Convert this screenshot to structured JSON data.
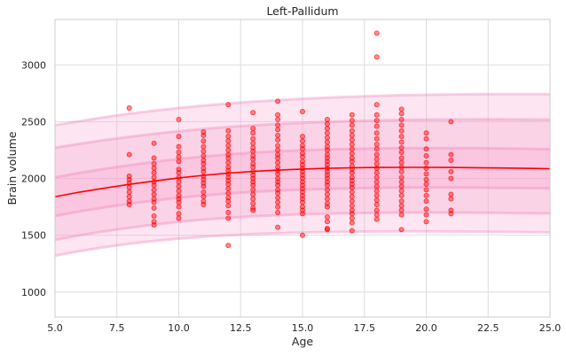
{
  "chart_data": {
    "type": "scatter",
    "title": "Left-Pallidum",
    "xlabel": "Age",
    "ylabel": "Brain volume",
    "xlim": [
      5,
      25
    ],
    "ylim": [
      780,
      3400
    ],
    "xticks": [
      5.0,
      7.5,
      10.0,
      12.5,
      15.0,
      17.5,
      20.0,
      22.5,
      25.0
    ],
    "xtick_labels": [
      "5.0",
      "7.5",
      "10.0",
      "12.5",
      "15.0",
      "17.5",
      "20.0",
      "22.5",
      "25.0"
    ],
    "yticks": [
      1000,
      1500,
      2000,
      2500,
      3000
    ],
    "ytick_labels": [
      "1000",
      "1500",
      "2000",
      "2500",
      "3000"
    ],
    "grid": true,
    "colors": {
      "points": "#ff0000",
      "median_line": "#ff0000",
      "band": "#f7a8cf",
      "band_edge": "#ee7fb7"
    },
    "median_line": {
      "x": [
        5,
        6,
        7,
        8,
        9,
        10,
        11,
        12,
        13,
        14,
        15,
        16,
        17,
        18,
        19,
        20,
        21,
        22,
        23,
        24,
        25
      ],
      "y": [
        1840,
        1880,
        1915,
        1948,
        1978,
        2005,
        2028,
        2047,
        2062,
        2074,
        2083,
        2090,
        2094,
        2097,
        2098,
        2098,
        2097,
        2095,
        2092,
        2089,
        2085
      ]
    },
    "centile_bands": [
      {
        "lower": [
          1320,
          1360,
          1395,
          1425,
          1450,
          1470,
          1487,
          1500,
          1510,
          1518,
          1524,
          1528,
          1531,
          1533,
          1534,
          1534,
          1533,
          1532,
          1530,
          1528,
          1525
        ],
        "upper": [
          2470,
          2505,
          2540,
          2570,
          2597,
          2621,
          2642,
          2660,
          2676,
          2690,
          2702,
          2712,
          2720,
          2727,
          2733,
          2737,
          2740,
          2742,
          2743,
          2743,
          2742
        ]
      },
      {
        "lower": [
          1460,
          1500,
          1535,
          1566,
          1594,
          1618,
          1638,
          1654,
          1667,
          1677,
          1685,
          1691,
          1695,
          1698,
          1700,
          1700,
          1700,
          1699,
          1697,
          1695,
          1692
        ],
        "upper": [
          2270,
          2305,
          2338,
          2367,
          2393,
          2416,
          2436,
          2453,
          2468,
          2480,
          2490,
          2498,
          2505,
          2511,
          2515,
          2518,
          2520,
          2521,
          2521,
          2520,
          2518
        ]
      },
      {
        "lower": [
          1670,
          1710,
          1745,
          1777,
          1805,
          1830,
          1851,
          1868,
          1882,
          1893,
          1902,
          1909,
          1914,
          1917,
          1919,
          1920,
          1920,
          1919,
          1917,
          1915,
          1912
        ],
        "upper": [
          2010,
          2050,
          2085,
          2117,
          2146,
          2172,
          2194,
          2212,
          2227,
          2239,
          2249,
          2256,
          2261,
          2265,
          2267,
          2268,
          2268,
          2267,
          2265,
          2262,
          2258
        ]
      }
    ],
    "points": [
      [
        8,
        2620
      ],
      [
        8,
        2210
      ],
      [
        8,
        2020
      ],
      [
        8,
        1990
      ],
      [
        8,
        1960
      ],
      [
        8,
        1920
      ],
      [
        8,
        1880
      ],
      [
        8,
        1840
      ],
      [
        8,
        1800
      ],
      [
        8,
        1770
      ],
      [
        9,
        2310
      ],
      [
        9,
        2180
      ],
      [
        9,
        2130
      ],
      [
        9,
        2090
      ],
      [
        9,
        2050
      ],
      [
        9,
        2010
      ],
      [
        9,
        1970
      ],
      [
        9,
        1940
      ],
      [
        9,
        1900
      ],
      [
        9,
        1860
      ],
      [
        9,
        1820
      ],
      [
        9,
        1790
      ],
      [
        9,
        1740
      ],
      [
        9,
        1670
      ],
      [
        9,
        1620
      ],
      [
        9,
        1590
      ],
      [
        10,
        2520
      ],
      [
        10,
        2370
      ],
      [
        10,
        2280
      ],
      [
        10,
        2230
      ],
      [
        10,
        2190
      ],
      [
        10,
        2150
      ],
      [
        10,
        2080
      ],
      [
        10,
        2050
      ],
      [
        10,
        2010
      ],
      [
        10,
        1970
      ],
      [
        10,
        1930
      ],
      [
        10,
        1890
      ],
      [
        10,
        1850
      ],
      [
        10,
        1820
      ],
      [
        10,
        1790
      ],
      [
        10,
        1750
      ],
      [
        10,
        1690
      ],
      [
        10,
        1650
      ],
      [
        11,
        2410
      ],
      [
        11,
        2380
      ],
      [
        11,
        2330
      ],
      [
        11,
        2280
      ],
      [
        11,
        2240
      ],
      [
        11,
        2200
      ],
      [
        11,
        2160
      ],
      [
        11,
        2130
      ],
      [
        11,
        2090
      ],
      [
        11,
        2060
      ],
      [
        11,
        2020
      ],
      [
        11,
        1990
      ],
      [
        11,
        1960
      ],
      [
        11,
        1930
      ],
      [
        11,
        1880
      ],
      [
        11,
        1840
      ],
      [
        11,
        1800
      ],
      [
        11,
        1770
      ],
      [
        12,
        2650
      ],
      [
        12,
        2420
      ],
      [
        12,
        2370
      ],
      [
        12,
        2330
      ],
      [
        12,
        2290
      ],
      [
        12,
        2250
      ],
      [
        12,
        2210
      ],
      [
        12,
        2180
      ],
      [
        12,
        2140
      ],
      [
        12,
        2100
      ],
      [
        12,
        2070
      ],
      [
        12,
        2040
      ],
      [
        12,
        2010
      ],
      [
        12,
        1980
      ],
      [
        12,
        1950
      ],
      [
        12,
        1910
      ],
      [
        12,
        1870
      ],
      [
        12,
        1830
      ],
      [
        12,
        1800
      ],
      [
        12,
        1760
      ],
      [
        12,
        1700
      ],
      [
        12,
        1650
      ],
      [
        12,
        1410
      ],
      [
        13,
        2580
      ],
      [
        13,
        2440
      ],
      [
        13,
        2400
      ],
      [
        13,
        2350
      ],
      [
        13,
        2310
      ],
      [
        13,
        2270
      ],
      [
        13,
        2240
      ],
      [
        13,
        2200
      ],
      [
        13,
        2170
      ],
      [
        13,
        2130
      ],
      [
        13,
        2100
      ],
      [
        13,
        2060
      ],
      [
        13,
        2030
      ],
      [
        13,
        2000
      ],
      [
        13,
        1970
      ],
      [
        13,
        1940
      ],
      [
        13,
        1900
      ],
      [
        13,
        1860
      ],
      [
        13,
        1820
      ],
      [
        13,
        1780
      ],
      [
        13,
        1740
      ],
      [
        13,
        1720
      ],
      [
        14,
        2680
      ],
      [
        14,
        2560
      ],
      [
        14,
        2520
      ],
      [
        14,
        2470
      ],
      [
        14,
        2430
      ],
      [
        14,
        2380
      ],
      [
        14,
        2340
      ],
      [
        14,
        2290
      ],
      [
        14,
        2250
      ],
      [
        14,
        2210
      ],
      [
        14,
        2180
      ],
      [
        14,
        2140
      ],
      [
        14,
        2100
      ],
      [
        14,
        2070
      ],
      [
        14,
        2040
      ],
      [
        14,
        2000
      ],
      [
        14,
        1970
      ],
      [
        14,
        1940
      ],
      [
        14,
        1900
      ],
      [
        14,
        1870
      ],
      [
        14,
        1830
      ],
      [
        14,
        1790
      ],
      [
        14,
        1750
      ],
      [
        14,
        1700
      ],
      [
        14,
        1570
      ],
      [
        15,
        2590
      ],
      [
        15,
        2370
      ],
      [
        15,
        2330
      ],
      [
        15,
        2290
      ],
      [
        15,
        2260
      ],
      [
        15,
        2220
      ],
      [
        15,
        2190
      ],
      [
        15,
        2150
      ],
      [
        15,
        2120
      ],
      [
        15,
        2090
      ],
      [
        15,
        2060
      ],
      [
        15,
        2030
      ],
      [
        15,
        2000
      ],
      [
        15,
        1970
      ],
      [
        15,
        1940
      ],
      [
        15,
        1910
      ],
      [
        15,
        1880
      ],
      [
        15,
        1850
      ],
      [
        15,
        1820
      ],
      [
        15,
        1790
      ],
      [
        15,
        1750
      ],
      [
        15,
        1720
      ],
      [
        15,
        1690
      ],
      [
        15,
        1500
      ],
      [
        16,
        2520
      ],
      [
        16,
        2480
      ],
      [
        16,
        2440
      ],
      [
        16,
        2400
      ],
      [
        16,
        2360
      ],
      [
        16,
        2320
      ],
      [
        16,
        2280
      ],
      [
        16,
        2250
      ],
      [
        16,
        2210
      ],
      [
        16,
        2180
      ],
      [
        16,
        2150
      ],
      [
        16,
        2120
      ],
      [
        16,
        2090
      ],
      [
        16,
        2060
      ],
      [
        16,
        2030
      ],
      [
        16,
        2000
      ],
      [
        16,
        1970
      ],
      [
        16,
        1940
      ],
      [
        16,
        1900
      ],
      [
        16,
        1860
      ],
      [
        16,
        1820
      ],
      [
        16,
        1780
      ],
      [
        16,
        1750
      ],
      [
        16,
        1660
      ],
      [
        16,
        1620
      ],
      [
        16,
        1560
      ],
      [
        16,
        1550
      ],
      [
        17,
        2560
      ],
      [
        17,
        2510
      ],
      [
        17,
        2470
      ],
      [
        17,
        2420
      ],
      [
        17,
        2380
      ],
      [
        17,
        2340
      ],
      [
        17,
        2300
      ],
      [
        17,
        2260
      ],
      [
        17,
        2220
      ],
      [
        17,
        2180
      ],
      [
        17,
        2150
      ],
      [
        17,
        2110
      ],
      [
        17,
        2080
      ],
      [
        17,
        2050
      ],
      [
        17,
        2010
      ],
      [
        17,
        1980
      ],
      [
        17,
        1950
      ],
      [
        17,
        1920
      ],
      [
        17,
        1880
      ],
      [
        17,
        1840
      ],
      [
        17,
        1800
      ],
      [
        17,
        1760
      ],
      [
        17,
        1720
      ],
      [
        17,
        1690
      ],
      [
        17,
        1650
      ],
      [
        17,
        1610
      ],
      [
        17,
        1540
      ],
      [
        18,
        3280
      ],
      [
        18,
        3070
      ],
      [
        18,
        2650
      ],
      [
        18,
        2560
      ],
      [
        18,
        2510
      ],
      [
        18,
        2460
      ],
      [
        18,
        2400
      ],
      [
        18,
        2350
      ],
      [
        18,
        2300
      ],
      [
        18,
        2260
      ],
      [
        18,
        2210
      ],
      [
        18,
        2170
      ],
      [
        18,
        2130
      ],
      [
        18,
        2090
      ],
      [
        18,
        2050
      ],
      [
        18,
        2010
      ],
      [
        18,
        1970
      ],
      [
        18,
        1930
      ],
      [
        18,
        1890
      ],
      [
        18,
        1850
      ],
      [
        18,
        1810
      ],
      [
        18,
        1770
      ],
      [
        18,
        1720
      ],
      [
        18,
        1680
      ],
      [
        18,
        1640
      ],
      [
        19,
        2610
      ],
      [
        19,
        2570
      ],
      [
        19,
        2520
      ],
      [
        19,
        2470
      ],
      [
        19,
        2420
      ],
      [
        19,
        2370
      ],
      [
        19,
        2320
      ],
      [
        19,
        2270
      ],
      [
        19,
        2230
      ],
      [
        19,
        2180
      ],
      [
        19,
        2140
      ],
      [
        19,
        2100
      ],
      [
        19,
        2060
      ],
      [
        19,
        2010
      ],
      [
        19,
        1970
      ],
      [
        19,
        1930
      ],
      [
        19,
        1890
      ],
      [
        19,
        1850
      ],
      [
        19,
        1800
      ],
      [
        19,
        1760
      ],
      [
        19,
        1720
      ],
      [
        19,
        1680
      ],
      [
        19,
        1550
      ],
      [
        20,
        2400
      ],
      [
        20,
        2350
      ],
      [
        20,
        2260
      ],
      [
        20,
        2200
      ],
      [
        20,
        2140
      ],
      [
        20,
        2090
      ],
      [
        20,
        2040
      ],
      [
        20,
        1990
      ],
      [
        20,
        1950
      ],
      [
        20,
        1900
      ],
      [
        20,
        1850
      ],
      [
        20,
        1800
      ],
      [
        20,
        1730
      ],
      [
        20,
        1680
      ],
      [
        20,
        1620
      ],
      [
        21,
        2500
      ],
      [
        21,
        2210
      ],
      [
        21,
        2160
      ],
      [
        21,
        2060
      ],
      [
        21,
        2000
      ],
      [
        21,
        1860
      ],
      [
        21,
        1820
      ],
      [
        21,
        1720
      ],
      [
        21,
        1690
      ]
    ]
  }
}
